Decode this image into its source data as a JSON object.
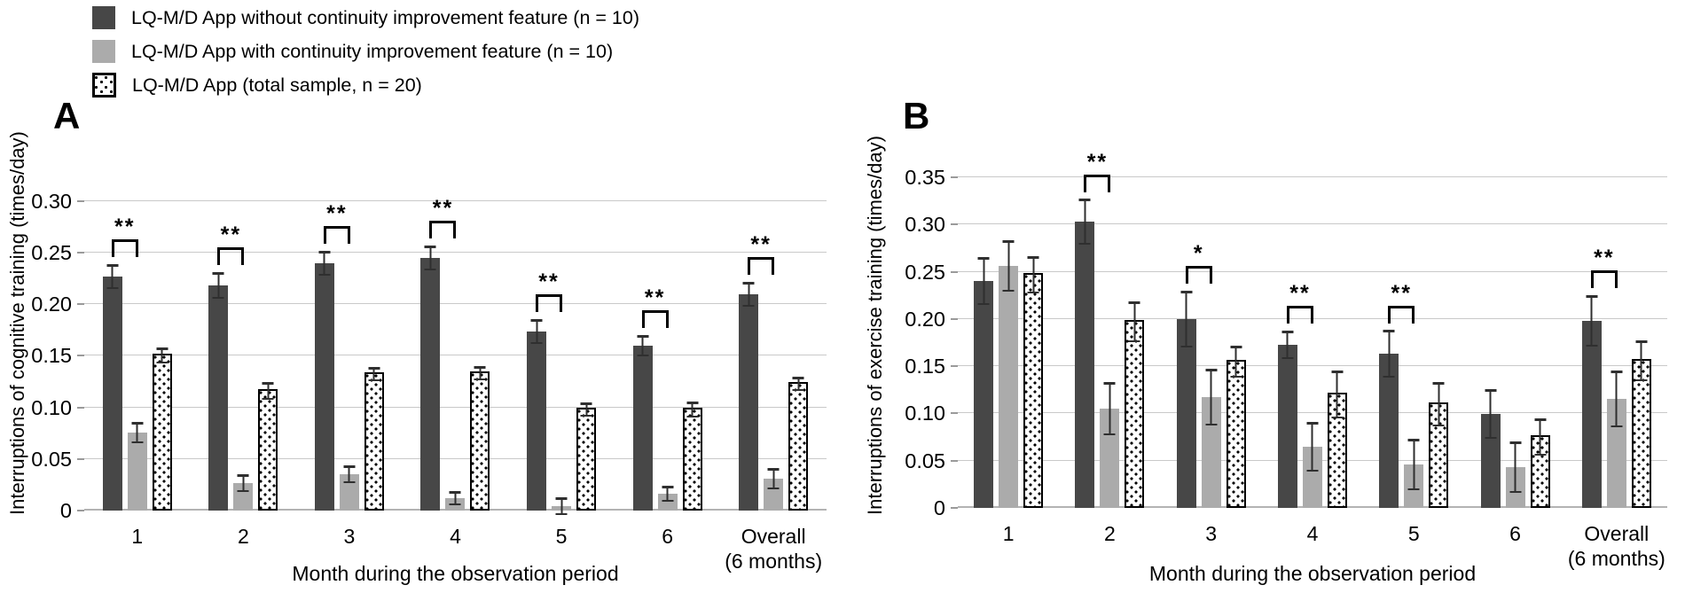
{
  "colors": {
    "dark_bar": "#474747",
    "gray_bar": "#ababab",
    "grid": "#c9c9c9",
    "axis": "#b3b3b3",
    "error_bar": "#2f2f2f",
    "bracket": "#000000"
  },
  "legend": {
    "items": [
      {
        "key": "without",
        "swatch": "dark",
        "label": "LQ-M/D App without continuity improvement feature (n = 10)"
      },
      {
        "key": "with",
        "swatch": "gray",
        "label": "LQ-M/D App with continuity improvement feature (n = 10)"
      },
      {
        "key": "total",
        "swatch": "dotted",
        "label": "LQ-M/D App (total sample, n = 20)"
      }
    ]
  },
  "chart_data": [
    {
      "id": "A",
      "panel_label": "A",
      "type": "bar",
      "title": "",
      "ylabel": "Interruptions of cognitive training (times/day)",
      "xlabel": "Month during the observation period",
      "ylim": [
        0,
        0.3
      ],
      "ytick_step": 0.05,
      "ytick_labels": [
        "0",
        "0.05",
        "0.10",
        "0.15",
        "0.20",
        "0.25",
        "0.30"
      ],
      "grid": true,
      "legend_position": "top-left-of-figure",
      "categories": [
        "1",
        "2",
        "3",
        "4",
        "5",
        "6",
        "Overall\n(6 months)"
      ],
      "series": [
        {
          "name": "LQ-M/D App without continuity improvement feature (n = 10)",
          "style": "dark",
          "values": [
            0.227,
            0.218,
            0.24,
            0.245,
            0.174,
            0.16,
            0.21
          ],
          "errors": [
            0.012,
            0.013,
            0.012,
            0.012,
            0.012,
            0.01,
            0.012
          ]
        },
        {
          "name": "LQ-M/D App with continuity improvement feature (n = 10)",
          "style": "gray",
          "values": [
            0.076,
            0.027,
            0.035,
            0.012,
            0.004,
            0.016,
            0.031
          ],
          "errors": [
            0.01,
            0.009,
            0.009,
            0.007,
            0.009,
            0.008,
            0.01
          ]
        },
        {
          "name": "LQ-M/D App (total sample, n = 20)",
          "style": "dotted",
          "values": [
            0.152,
            0.118,
            0.134,
            0.135,
            0.1,
            0.1,
            0.125
          ],
          "errors": [
            0.008,
            0.009,
            0.007,
            0.007,
            0.007,
            0.008,
            0.007
          ]
        }
      ],
      "significance": [
        "**",
        "**",
        "**",
        "**",
        "**",
        "**",
        "**"
      ]
    },
    {
      "id": "B",
      "panel_label": "B",
      "type": "bar",
      "title": "",
      "ylabel": "Interruptions of exercise training (times/day)",
      "xlabel": "Month during the observation period",
      "ylim": [
        0,
        0.35
      ],
      "ytick_step": 0.05,
      "ytick_labels": [
        "0",
        "0.05",
        "0.10",
        "0.15",
        "0.20",
        "0.25",
        "0.30",
        "0.35"
      ],
      "grid": true,
      "legend_position": "top-left-of-figure",
      "categories": [
        "1",
        "2",
        "3",
        "4",
        "5",
        "6",
        "Overall\n(6 months)"
      ],
      "series": [
        {
          "name": "LQ-M/D App without continuity improvement feature (n = 10)",
          "style": "dark",
          "values": [
            0.24,
            0.303,
            0.2,
            0.173,
            0.163,
            0.099,
            0.198
          ],
          "errors": [
            0.025,
            0.024,
            0.03,
            0.015,
            0.025,
            0.026,
            0.027
          ]
        },
        {
          "name": "LQ-M/D App with continuity improvement feature (n = 10)",
          "style": "gray",
          "values": [
            0.256,
            0.105,
            0.117,
            0.065,
            0.046,
            0.043,
            0.115
          ],
          "errors": [
            0.027,
            0.028,
            0.03,
            0.026,
            0.027,
            0.027,
            0.03
          ]
        },
        {
          "name": "LQ-M/D App (total sample, n = 20)",
          "style": "dotted",
          "values": [
            0.249,
            0.199,
            0.157,
            0.122,
            0.112,
            0.077,
            0.158
          ],
          "errors": [
            0.02,
            0.022,
            0.017,
            0.025,
            0.023,
            0.02,
            0.022
          ]
        }
      ],
      "significance": [
        null,
        "**",
        "*",
        "**",
        "**",
        null,
        "**"
      ]
    }
  ]
}
